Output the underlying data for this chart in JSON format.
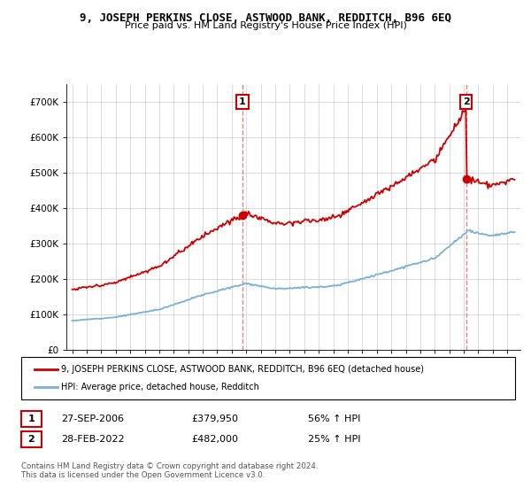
{
  "title": "9, JOSEPH PERKINS CLOSE, ASTWOOD BANK, REDDITCH, B96 6EQ",
  "subtitle": "Price paid vs. HM Land Registry's House Price Index (HPI)",
  "legend_line1": "9, JOSEPH PERKINS CLOSE, ASTWOOD BANK, REDDITCH, B96 6EQ (detached house)",
  "legend_line2": "HPI: Average price, detached house, Redditch",
  "annotation1_label": "1",
  "annotation1_date": "27-SEP-2006",
  "annotation1_price": "£379,950",
  "annotation1_hpi": "56% ↑ HPI",
  "annotation2_label": "2",
  "annotation2_date": "28-FEB-2022",
  "annotation2_price": "£482,000",
  "annotation2_hpi": "25% ↑ HPI",
  "footer": "Contains HM Land Registry data © Crown copyright and database right 2024.\nThis data is licensed under the Open Government Licence v3.0.",
  "red_color": "#cc0000",
  "blue_color": "#7ab0d4",
  "vline_color": "#e88080",
  "ylim": [
    0,
    750000
  ],
  "yticks": [
    0,
    100000,
    200000,
    300000,
    400000,
    500000,
    600000,
    700000
  ],
  "ytick_labels": [
    "£0",
    "£100K",
    "£200K",
    "£300K",
    "£400K",
    "£500K",
    "£600K",
    "£700K"
  ],
  "sale1_x": 2006.74,
  "sale1_y": 379950,
  "sale2_x": 2022.16,
  "sale2_y": 482000,
  "xmin": 1994.6,
  "xmax": 2025.9
}
